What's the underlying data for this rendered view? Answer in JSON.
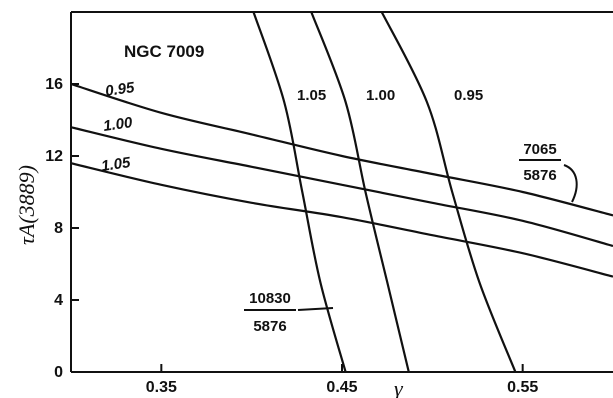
{
  "chart_data": {
    "type": "line",
    "title": "NGC 7009",
    "xlabel": "γ",
    "ylabel": "τA(3889)",
    "xlim": [
      0.3,
      0.6
    ],
    "ylim": [
      0,
      20
    ],
    "x_ticks": [
      "0.35",
      "0.45",
      "0.55"
    ],
    "y_ticks": [
      "0",
      "4",
      "8",
      "12",
      "16"
    ],
    "grid": false,
    "series_7065": {
      "label_top": "7065",
      "label_bottom": "5876",
      "series": [
        {
          "name": "0.95",
          "points": [
            [
              0.3,
              16.0
            ],
            [
              0.35,
              14.4
            ],
            [
              0.4,
              13.2
            ],
            [
              0.45,
              12.0
            ],
            [
              0.5,
              11.0
            ],
            [
              0.55,
              10.0
            ],
            [
              0.6,
              8.7
            ]
          ]
        },
        {
          "name": "1.00",
          "points": [
            [
              0.3,
              13.6
            ],
            [
              0.35,
              12.4
            ],
            [
              0.4,
              11.4
            ],
            [
              0.45,
              10.4
            ],
            [
              0.5,
              9.4
            ],
            [
              0.55,
              8.4
            ],
            [
              0.6,
              7.0
            ]
          ]
        },
        {
          "name": "1.05",
          "points": [
            [
              0.3,
              11.6
            ],
            [
              0.35,
              10.4
            ],
            [
              0.4,
              9.4
            ],
            [
              0.45,
              8.6
            ],
            [
              0.5,
              7.6
            ],
            [
              0.55,
              6.6
            ],
            [
              0.6,
              5.3
            ]
          ]
        }
      ]
    },
    "series_10830": {
      "label_top": "10830",
      "label_bottom": "5876",
      "series": [
        {
          "name": "1.05",
          "points": [
            [
              0.401,
              20.0
            ],
            [
              0.418,
              15.0
            ],
            [
              0.428,
              10.0
            ],
            [
              0.438,
              5.0
            ],
            [
              0.452,
              0.0
            ]
          ]
        },
        {
          "name": "1.00",
          "points": [
            [
              0.433,
              20.0
            ],
            [
              0.452,
              15.0
            ],
            [
              0.463,
              10.0
            ],
            [
              0.475,
              5.0
            ],
            [
              0.487,
              0.0
            ]
          ]
        },
        {
          "name": "0.95",
          "points": [
            [
              0.472,
              20.0
            ],
            [
              0.497,
              15.0
            ],
            [
              0.511,
              10.0
            ],
            [
              0.526,
              5.0
            ],
            [
              0.546,
              0.0
            ]
          ]
        }
      ]
    }
  }
}
